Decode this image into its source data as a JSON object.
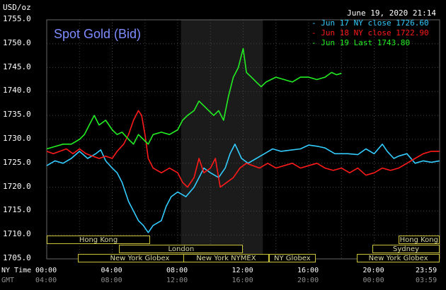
{
  "header": {
    "unit": "USD/oz",
    "timestamp": "June 19, 2020 21:14",
    "title": "Spot Gold (Bid)"
  },
  "legend": [
    {
      "label": "Jun 17 NY close 1726.60",
      "color": "#33ccff"
    },
    {
      "label": "Jun 18 NY close 1722.90",
      "color": "#ff1a1a"
    },
    {
      "label": "Jun 19 Last 1743.80",
      "color": "#22ee22"
    }
  ],
  "sessions": [
    {
      "label": "Hong Kong",
      "row": 0,
      "start": 0,
      "end": 10
    },
    {
      "label": "London",
      "row": 1,
      "start": 7,
      "end": 19
    },
    {
      "label": "New York Globex",
      "row": 2,
      "start": 3,
      "end": 15
    },
    {
      "label": "New York NYMEX",
      "row": 2,
      "start": 13.2,
      "end": 21.5
    },
    {
      "label": "NY Globex",
      "row": 2,
      "start": 21.5,
      "end": 26
    },
    {
      "label": "Hong Kong",
      "row": 0,
      "start": 34,
      "end": 38
    },
    {
      "label": "Sydney",
      "row": 1,
      "start": 31.5,
      "end": 38
    },
    {
      "label": "New York Globex",
      "row": 2,
      "start": 30,
      "end": 38
    }
  ],
  "x_axis": {
    "row1_title": "NY Time",
    "row2_title": "GMT",
    "row1": [
      "00:00",
      "04:00",
      "08:00",
      "12:00",
      "16:00",
      "20:00",
      "23:59"
    ],
    "row2": [
      "04:00",
      "08:00",
      "12:00",
      "16:00",
      "20:00",
      "00:00",
      "03:59"
    ]
  },
  "chart_data": {
    "type": "line",
    "xlabel": "",
    "ylabel": "USD/oz",
    "xlim": [
      0,
      24
    ],
    "ylim": [
      1705,
      1755
    ],
    "yticks": [
      "1705.0",
      "1710.0",
      "1715.0",
      "1720.0",
      "1725.0",
      "1730.0",
      "1735.0",
      "1740.0",
      "1745.0",
      "1750.0",
      "1755.0"
    ],
    "xticks_ny": [
      "00:00",
      "04:00",
      "08:00",
      "12:00",
      "16:00",
      "20:00",
      "23:59"
    ],
    "highlight_range_hours": [
      8.2,
      13.2
    ],
    "grid": true,
    "series": [
      {
        "name": "Jun 17 NY close 1726.60",
        "color": "#33ccff",
        "points": [
          [
            0,
            1724.5
          ],
          [
            0.5,
            1725.5
          ],
          [
            1,
            1725
          ],
          [
            1.5,
            1726
          ],
          [
            2,
            1727.5
          ],
          [
            2.5,
            1726
          ],
          [
            3,
            1727
          ],
          [
            3.3,
            1727.8
          ],
          [
            3.6,
            1725.5
          ],
          [
            4,
            1724
          ],
          [
            4.3,
            1723
          ],
          [
            4.6,
            1721
          ],
          [
            5,
            1717
          ],
          [
            5.3,
            1715
          ],
          [
            5.6,
            1713
          ],
          [
            5.9,
            1712
          ],
          [
            6.2,
            1710.5
          ],
          [
            6.5,
            1712
          ],
          [
            7,
            1713
          ],
          [
            7.3,
            1716
          ],
          [
            7.6,
            1718
          ],
          [
            8,
            1719
          ],
          [
            8.5,
            1718
          ],
          [
            9,
            1720
          ],
          [
            9.3,
            1722
          ],
          [
            9.6,
            1724
          ],
          [
            10,
            1723
          ],
          [
            10.5,
            1722
          ],
          [
            10.9,
            1724
          ],
          [
            11.2,
            1727
          ],
          [
            11.5,
            1729
          ],
          [
            11.9,
            1726
          ],
          [
            12.3,
            1725
          ],
          [
            12.8,
            1726
          ],
          [
            13.3,
            1727
          ],
          [
            13.8,
            1728
          ],
          [
            14.3,
            1727.5
          ],
          [
            15,
            1727.8
          ],
          [
            15.5,
            1728
          ],
          [
            16,
            1728.8
          ],
          [
            16.6,
            1728.5
          ],
          [
            17,
            1728.2
          ],
          [
            17.6,
            1727
          ],
          [
            18.4,
            1727
          ],
          [
            19,
            1726.8
          ],
          [
            19.5,
            1728
          ],
          [
            20,
            1727
          ],
          [
            20.5,
            1729
          ],
          [
            20.8,
            1727.5
          ],
          [
            21.2,
            1726
          ],
          [
            21.5,
            1726.5
          ],
          [
            22,
            1727
          ],
          [
            22.5,
            1725
          ],
          [
            23,
            1725.5
          ],
          [
            23.5,
            1725.2
          ],
          [
            23.99,
            1725.5
          ]
        ]
      },
      {
        "name": "Jun 18 NY close 1722.90",
        "color": "#ff1a1a",
        "points": [
          [
            0,
            1727.5
          ],
          [
            0.4,
            1727
          ],
          [
            0.8,
            1727.5
          ],
          [
            1.2,
            1728
          ],
          [
            1.6,
            1727
          ],
          [
            2,
            1728
          ],
          [
            2.4,
            1727
          ],
          [
            2.8,
            1726.5
          ],
          [
            3.2,
            1726
          ],
          [
            3.6,
            1726.5
          ],
          [
            4,
            1726
          ],
          [
            4.3,
            1727.5
          ],
          [
            4.7,
            1729
          ],
          [
            5,
            1731
          ],
          [
            5.3,
            1734
          ],
          [
            5.6,
            1736
          ],
          [
            5.8,
            1735
          ],
          [
            6,
            1731
          ],
          [
            6.2,
            1726
          ],
          [
            6.5,
            1724
          ],
          [
            7,
            1723
          ],
          [
            7.5,
            1724
          ],
          [
            8,
            1723
          ],
          [
            8.3,
            1721
          ],
          [
            8.6,
            1720
          ],
          [
            9,
            1722
          ],
          [
            9.3,
            1726
          ],
          [
            9.6,
            1723
          ],
          [
            10,
            1724
          ],
          [
            10.3,
            1726
          ],
          [
            10.6,
            1720
          ],
          [
            11,
            1721
          ],
          [
            11.4,
            1722
          ],
          [
            11.8,
            1724
          ],
          [
            12.2,
            1725
          ],
          [
            12.6,
            1724.5
          ],
          [
            13,
            1724
          ],
          [
            13.5,
            1725
          ],
          [
            14,
            1724
          ],
          [
            14.5,
            1724.5
          ],
          [
            15,
            1725
          ],
          [
            15.5,
            1724
          ],
          [
            16,
            1724.5
          ],
          [
            16.5,
            1725
          ],
          [
            17,
            1724
          ],
          [
            17.5,
            1723.5
          ],
          [
            18,
            1724
          ],
          [
            18.5,
            1723
          ],
          [
            19,
            1724
          ],
          [
            19.5,
            1722.5
          ],
          [
            20,
            1723
          ],
          [
            20.5,
            1724
          ],
          [
            21,
            1723.5
          ],
          [
            21.5,
            1724
          ],
          [
            22,
            1725
          ],
          [
            22.5,
            1726
          ],
          [
            23,
            1727
          ],
          [
            23.5,
            1727.5
          ],
          [
            23.99,
            1727.5
          ]
        ]
      },
      {
        "name": "Jun 19 Last 1743.80",
        "color": "#22ee22",
        "points": [
          [
            0,
            1728
          ],
          [
            0.5,
            1728.5
          ],
          [
            1,
            1729
          ],
          [
            1.5,
            1729
          ],
          [
            2,
            1730
          ],
          [
            2.3,
            1731
          ],
          [
            2.6,
            1733
          ],
          [
            2.9,
            1735
          ],
          [
            3.2,
            1733
          ],
          [
            3.6,
            1734
          ],
          [
            4,
            1732
          ],
          [
            4.3,
            1731
          ],
          [
            4.6,
            1731.5
          ],
          [
            5,
            1730
          ],
          [
            5.3,
            1729
          ],
          [
            5.6,
            1731
          ],
          [
            5.9,
            1730
          ],
          [
            6.2,
            1729
          ],
          [
            6.5,
            1731
          ],
          [
            7,
            1731.5
          ],
          [
            7.5,
            1731
          ],
          [
            8,
            1732
          ],
          [
            8.3,
            1734
          ],
          [
            8.6,
            1735
          ],
          [
            9,
            1736
          ],
          [
            9.3,
            1738
          ],
          [
            9.6,
            1737
          ],
          [
            9.9,
            1736
          ],
          [
            10.2,
            1735
          ],
          [
            10.5,
            1736
          ],
          [
            10.8,
            1734
          ],
          [
            11.1,
            1739
          ],
          [
            11.4,
            1743
          ],
          [
            11.7,
            1745
          ],
          [
            12,
            1749
          ],
          [
            12.2,
            1744
          ],
          [
            12.5,
            1743
          ],
          [
            12.8,
            1742
          ],
          [
            13.1,
            1741
          ],
          [
            13.4,
            1742
          ],
          [
            13.7,
            1742.5
          ],
          [
            14,
            1743
          ],
          [
            14.5,
            1742.5
          ],
          [
            15,
            1742
          ],
          [
            15.5,
            1743
          ],
          [
            16,
            1743
          ],
          [
            16.5,
            1742.5
          ],
          [
            17,
            1743
          ],
          [
            17.4,
            1744
          ],
          [
            17.7,
            1743.5
          ],
          [
            18,
            1743.8
          ]
        ]
      }
    ]
  }
}
